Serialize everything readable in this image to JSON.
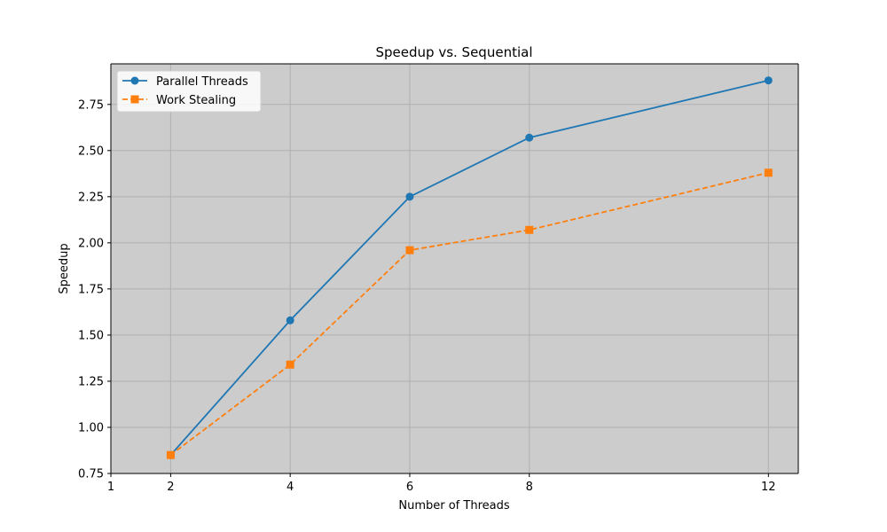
{
  "chart_data": {
    "type": "line",
    "title": "Speedup vs. Sequential",
    "xlabel": "Number of Threads",
    "ylabel": "Speedup",
    "x": [
      2,
      4,
      6,
      8,
      12
    ],
    "xlim": [
      1,
      12.5
    ],
    "ylim": [
      0.75,
      2.97
    ],
    "xticks": [
      1,
      2,
      4,
      6,
      8,
      12
    ],
    "xtick_labels": [
      "1",
      "2",
      "4",
      "6",
      "8",
      "12"
    ],
    "yticks": [
      0.75,
      1.0,
      1.25,
      1.5,
      1.75,
      2.0,
      2.25,
      2.5,
      2.75
    ],
    "ytick_labels": [
      "0.75",
      "1.00",
      "1.25",
      "1.50",
      "1.75",
      "2.00",
      "2.25",
      "2.50",
      "2.75"
    ],
    "grid": true,
    "legend_position": "top-left",
    "background_color": "#cccccc",
    "series": [
      {
        "name": "Parallel Threads",
        "values": [
          0.85,
          1.58,
          2.25,
          2.57,
          2.88
        ],
        "color": "#1f77b4",
        "marker": "circle",
        "line_style": "solid"
      },
      {
        "name": "Work Stealing",
        "values": [
          0.85,
          1.34,
          1.96,
          2.07,
          2.38
        ],
        "color": "#ff7f0e",
        "marker": "square",
        "line_style": "dashed"
      }
    ]
  }
}
